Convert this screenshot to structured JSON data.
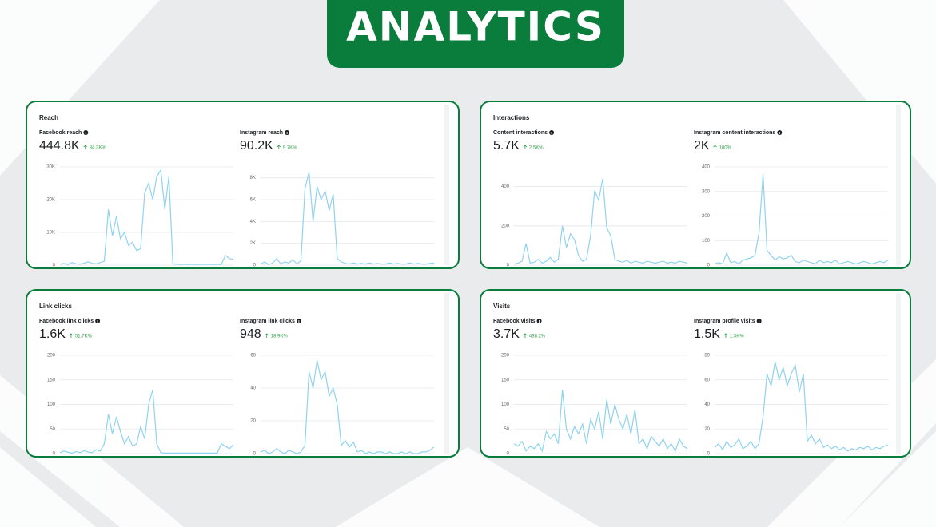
{
  "header": {
    "title": "ANALYTICS"
  },
  "panels": [
    {
      "title": "Reach",
      "metrics": [
        {
          "label": "Facebook reach",
          "value": "444.8K",
          "change": "84.3K%",
          "chart": {
            "type": "line",
            "color": "#8fd3f0",
            "grid": true,
            "ylim": [
              0,
              30000
            ],
            "yticks": [
              {
                "value": 0,
                "label": "0"
              },
              {
                "value": 10000,
                "label": "10K"
              },
              {
                "value": 20000,
                "label": "20K"
              },
              {
                "value": 30000,
                "label": "30K"
              }
            ],
            "values": [
              300,
              500,
              200,
              800,
              400,
              300,
              600,
              1000,
              500,
              400,
              800,
              1200,
              17000,
              9000,
              15000,
              8000,
              10000,
              6000,
              7000,
              4500,
              5000,
              22000,
              25000,
              20000,
              27000,
              29000,
              17000,
              27000,
              400,
              300,
              200,
              300,
              200,
              300,
              200,
              300,
              200,
              300,
              200,
              300,
              200,
              3000,
              2000,
              1800
            ]
          }
        },
        {
          "label": "Instagram reach",
          "value": "90.2K",
          "change": "9.7K%",
          "chart": {
            "type": "line",
            "color": "#8fd3f0",
            "grid": true,
            "ylim": [
              0,
              9000
            ],
            "yticks": [
              {
                "value": 0,
                "label": "0"
              },
              {
                "value": 2000,
                "label": "2K"
              },
              {
                "value": 4000,
                "label": "4K"
              },
              {
                "value": 6000,
                "label": "6K"
              },
              {
                "value": 8000,
                "label": "8K"
              }
            ],
            "values": [
              100,
              300,
              50,
              200,
              600,
              100,
              300,
              200,
              500,
              100,
              400,
              7000,
              8500,
              4000,
              7200,
              6000,
              6800,
              5000,
              6500,
              600,
              300,
              150,
              100,
              200,
              100,
              150,
              100,
              200,
              100,
              150,
              100,
              100,
              200,
              100,
              150,
              100,
              100,
              200,
              100,
              150,
              100,
              100,
              150,
              200
            ]
          }
        }
      ]
    },
    {
      "title": "Interactions",
      "metrics": [
        {
          "label": "Content interactions",
          "value": "5.7K",
          "change": "2.5K%",
          "chart": {
            "type": "line",
            "color": "#8fd3f0",
            "grid": true,
            "ylim": [
              0,
              500
            ],
            "yticks": [
              0,
              200,
              400
            ],
            "values": [
              5,
              10,
              20,
              110,
              10,
              15,
              30,
              10,
              20,
              40,
              15,
              30,
              200,
              90,
              160,
              130,
              50,
              20,
              30,
              150,
              380,
              330,
              440,
              190,
              150,
              30,
              20,
              15,
              25,
              10,
              20,
              15,
              10,
              20,
              15,
              10,
              15,
              20,
              10,
              15,
              10,
              20,
              15,
              10
            ]
          }
        },
        {
          "label": "Instagram content interactions",
          "value": "2K",
          "change": "100%",
          "chart": {
            "type": "line",
            "color": "#8fd3f0",
            "grid": true,
            "ylim": [
              0,
              400
            ],
            "yticks": [
              0,
              100,
              200,
              300,
              400
            ],
            "values": [
              5,
              10,
              5,
              50,
              10,
              15,
              5,
              20,
              25,
              30,
              40,
              130,
              370,
              60,
              40,
              20,
              35,
              25,
              30,
              40,
              15,
              10,
              20,
              15,
              10,
              5,
              20,
              10,
              15,
              10,
              20,
              5,
              10,
              15,
              10,
              5,
              10,
              15,
              10,
              5,
              10,
              15,
              10,
              20
            ]
          }
        }
      ]
    },
    {
      "title": "Link clicks",
      "metrics": [
        {
          "label": "Facebook link clicks",
          "value": "1.6K",
          "change": "51.7K%",
          "chart": {
            "type": "line",
            "color": "#8fd3f0",
            "grid": true,
            "ylim": [
              0,
              200
            ],
            "yticks": [
              0,
              50,
              100,
              150,
              200
            ],
            "values": [
              2,
              5,
              3,
              1,
              4,
              2,
              6,
              3,
              2,
              8,
              5,
              20,
              80,
              40,
              75,
              45,
              20,
              35,
              15,
              20,
              55,
              30,
              100,
              130,
              20,
              2,
              1,
              1,
              1,
              1,
              1,
              1,
              1,
              1,
              1,
              1,
              1,
              1,
              1,
              1,
              20,
              15,
              10,
              18
            ]
          }
        },
        {
          "label": "Instagram link clicks",
          "value": "948",
          "change": "18.9K%",
          "chart": {
            "type": "line",
            "color": "#8fd3f0",
            "grid": true,
            "ylim": [
              0,
              60
            ],
            "yticks": [
              0,
              20,
              40,
              60
            ],
            "values": [
              1,
              2,
              0,
              1,
              3,
              1,
              0,
              2,
              1,
              0,
              1,
              5,
              50,
              40,
              57,
              45,
              50,
              35,
              40,
              30,
              5,
              8,
              4,
              7,
              1,
              2,
              0,
              1,
              0,
              1,
              1,
              0,
              1,
              0,
              0,
              1,
              0,
              1,
              0,
              0,
              1,
              1,
              2,
              4
            ]
          }
        }
      ]
    },
    {
      "title": "Visits",
      "metrics": [
        {
          "label": "Facebook visits",
          "value": "3.7K",
          "change": "438.2%",
          "chart": {
            "type": "line",
            "color": "#8fd3f0",
            "grid": true,
            "ylim": [
              0,
              200
            ],
            "yticks": [
              0,
              50,
              100,
              150,
              200
            ],
            "values": [
              20,
              15,
              25,
              5,
              15,
              10,
              20,
              5,
              45,
              30,
              40,
              20,
              130,
              50,
              30,
              55,
              40,
              60,
              20,
              70,
              50,
              85,
              30,
              110,
              60,
              100,
              70,
              50,
              80,
              40,
              90,
              20,
              30,
              10,
              35,
              25,
              15,
              30,
              10,
              20,
              5,
              30,
              15,
              10
            ]
          }
        },
        {
          "label": "Instagram profile visits",
          "value": "1.5K",
          "change": "1.3K%",
          "chart": {
            "type": "line",
            "color": "#8fd3f0",
            "grid": true,
            "ylim": [
              0,
              80
            ],
            "yticks": [
              0,
              20,
              40,
              60,
              80
            ],
            "values": [
              5,
              8,
              3,
              10,
              5,
              7,
              12,
              4,
              6,
              10,
              4,
              8,
              30,
              65,
              55,
              75,
              60,
              70,
              55,
              65,
              72,
              50,
              65,
              10,
              15,
              8,
              12,
              5,
              7,
              4,
              6,
              3,
              5,
              2,
              4,
              3,
              5,
              4,
              6,
              3,
              5,
              4,
              6,
              7
            ]
          }
        }
      ]
    }
  ]
}
